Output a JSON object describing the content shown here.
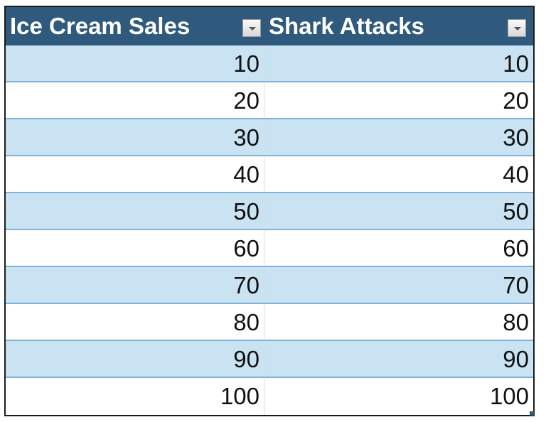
{
  "table": {
    "headers": [
      "Ice Cream Sales",
      "Shark Attacks"
    ],
    "rows": [
      [
        10,
        10
      ],
      [
        20,
        20
      ],
      [
        30,
        30
      ],
      [
        40,
        40
      ],
      [
        50,
        50
      ],
      [
        60,
        60
      ],
      [
        70,
        70
      ],
      [
        80,
        80
      ],
      [
        90,
        90
      ],
      [
        100,
        100
      ]
    ]
  }
}
